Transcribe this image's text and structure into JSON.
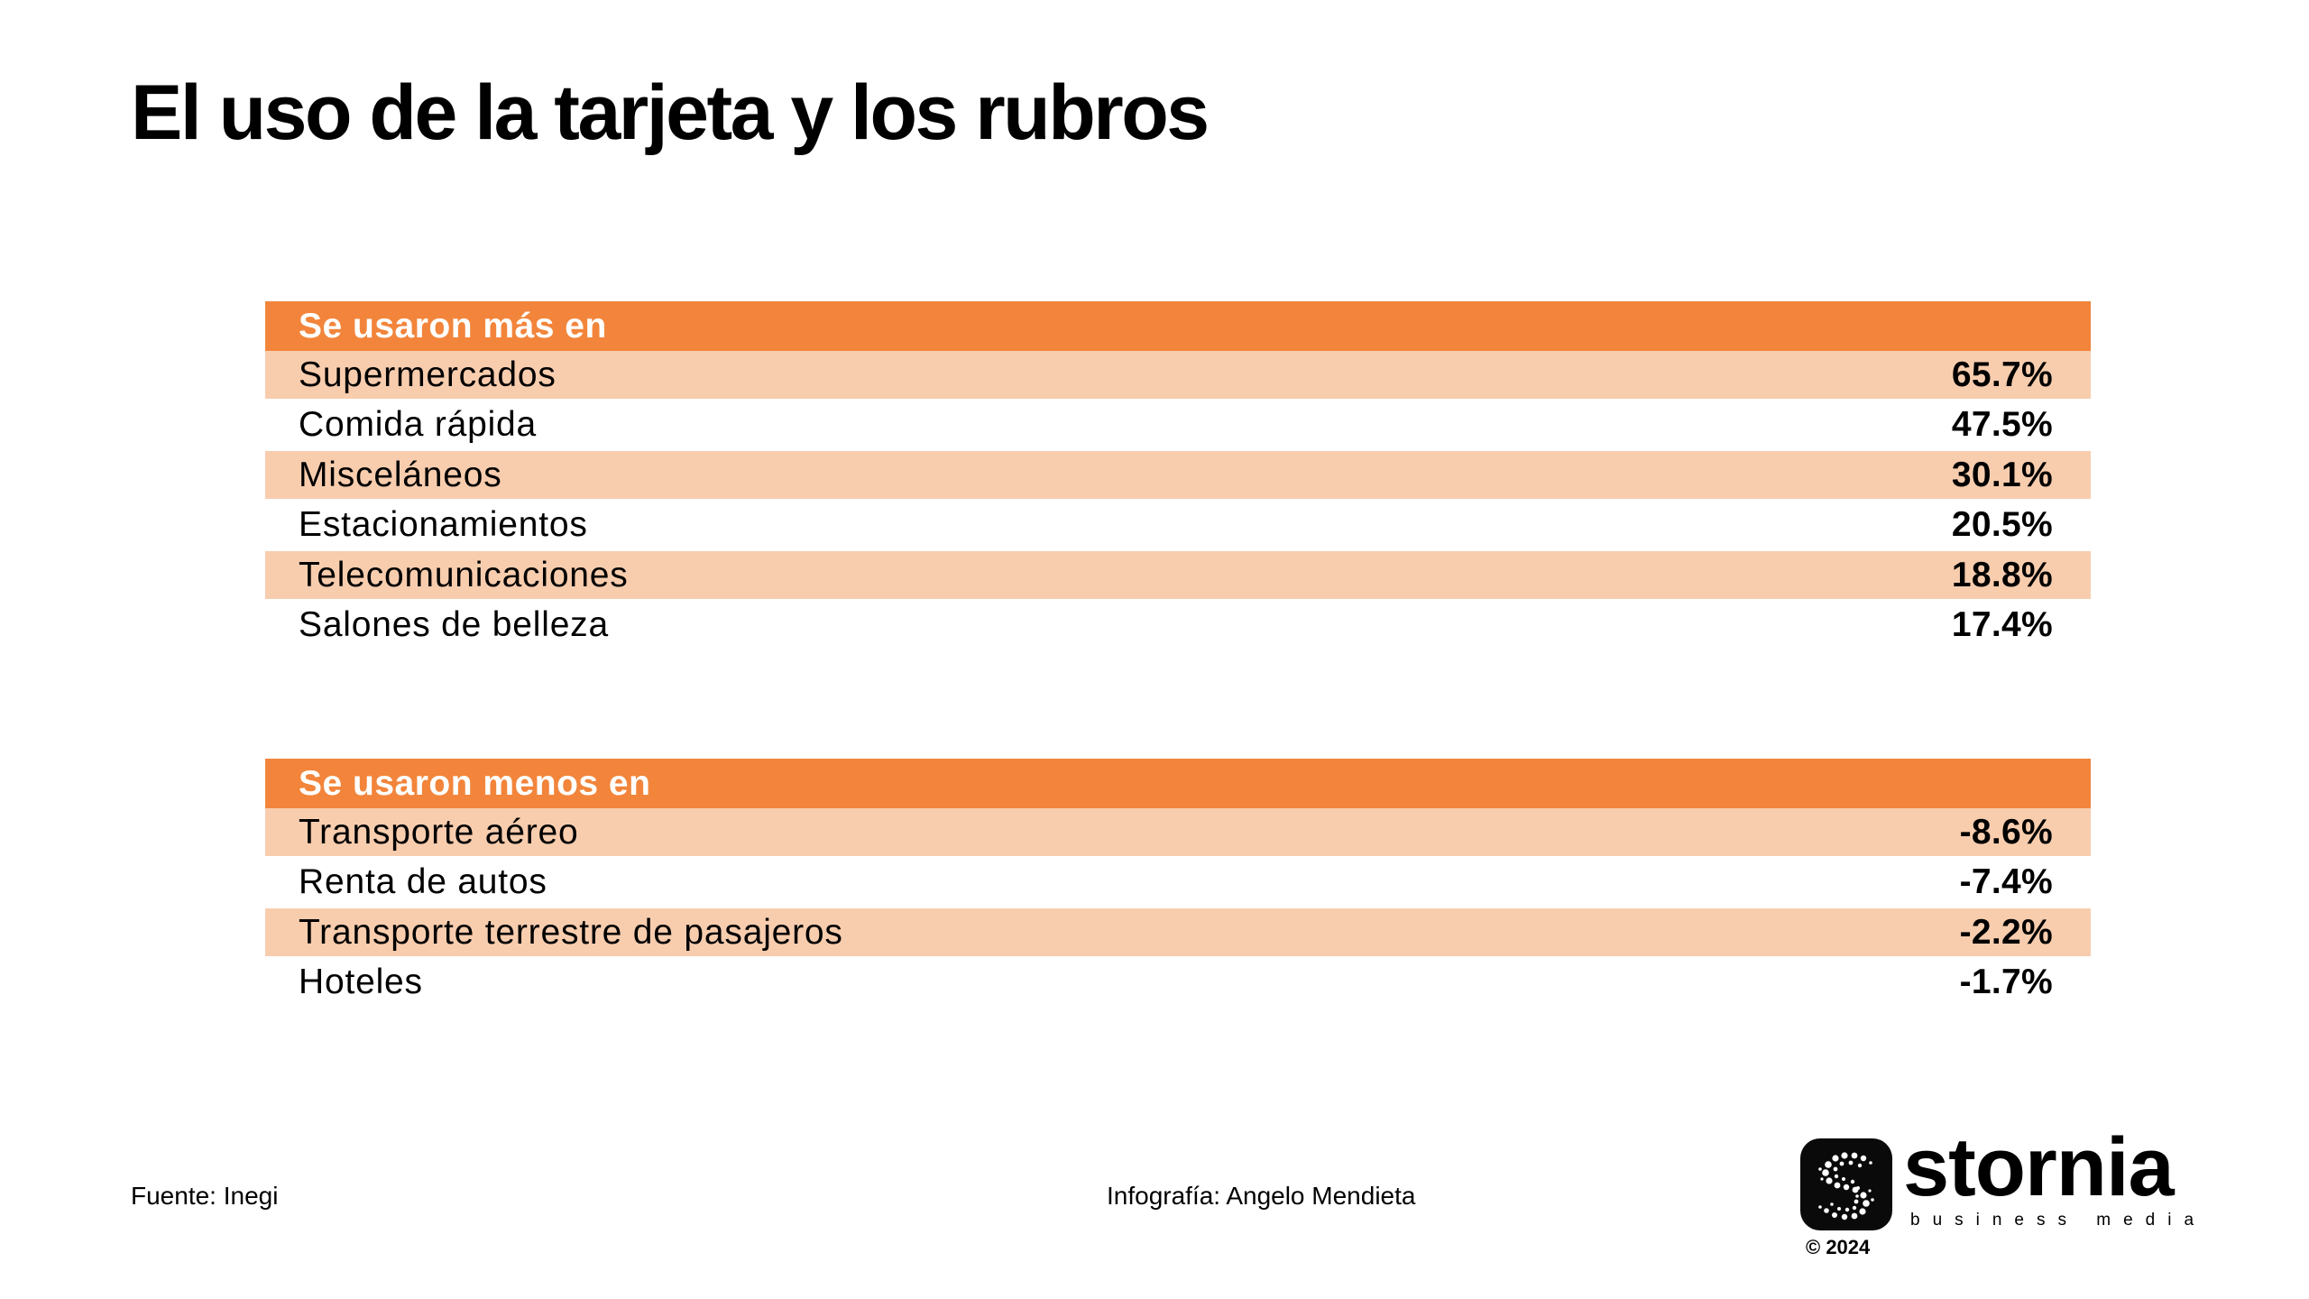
{
  "title": "El uso de la tarjeta y los rubros",
  "colors": {
    "header": "#f2853b",
    "shaded_row": "#f8cdae",
    "text": "#000000"
  },
  "table_more": {
    "header": "Se usaron más en",
    "rows": [
      {
        "label": "Supermercados",
        "value": "65.7%"
      },
      {
        "label": "Comida rápida",
        "value": "47.5%"
      },
      {
        "label": "Misceláneos",
        "value": "30.1%"
      },
      {
        "label": "Estacionamientos",
        "value": "20.5%"
      },
      {
        "label": "Telecomunicaciones",
        "value": "18.8%"
      },
      {
        "label": "Salones de belleza",
        "value": "17.4%"
      }
    ]
  },
  "table_less": {
    "header": "Se usaron menos en",
    "rows": [
      {
        "label": "Transporte aéreo",
        "value": "-8.6%"
      },
      {
        "label": "Renta de autos",
        "value": "-7.4%"
      },
      {
        "label": "Transporte terrestre de pasajeros",
        "value": "-2.2%"
      },
      {
        "label": "Hoteles",
        "value": "-1.7%"
      }
    ]
  },
  "footer": {
    "source": "Fuente: Inegi",
    "credit": "Infografía: Angelo Mendieta"
  },
  "logo": {
    "icon": "stornia-s-logo-icon",
    "wordmark": "stornia",
    "tagline": "business media",
    "copyright": "© 2024"
  }
}
